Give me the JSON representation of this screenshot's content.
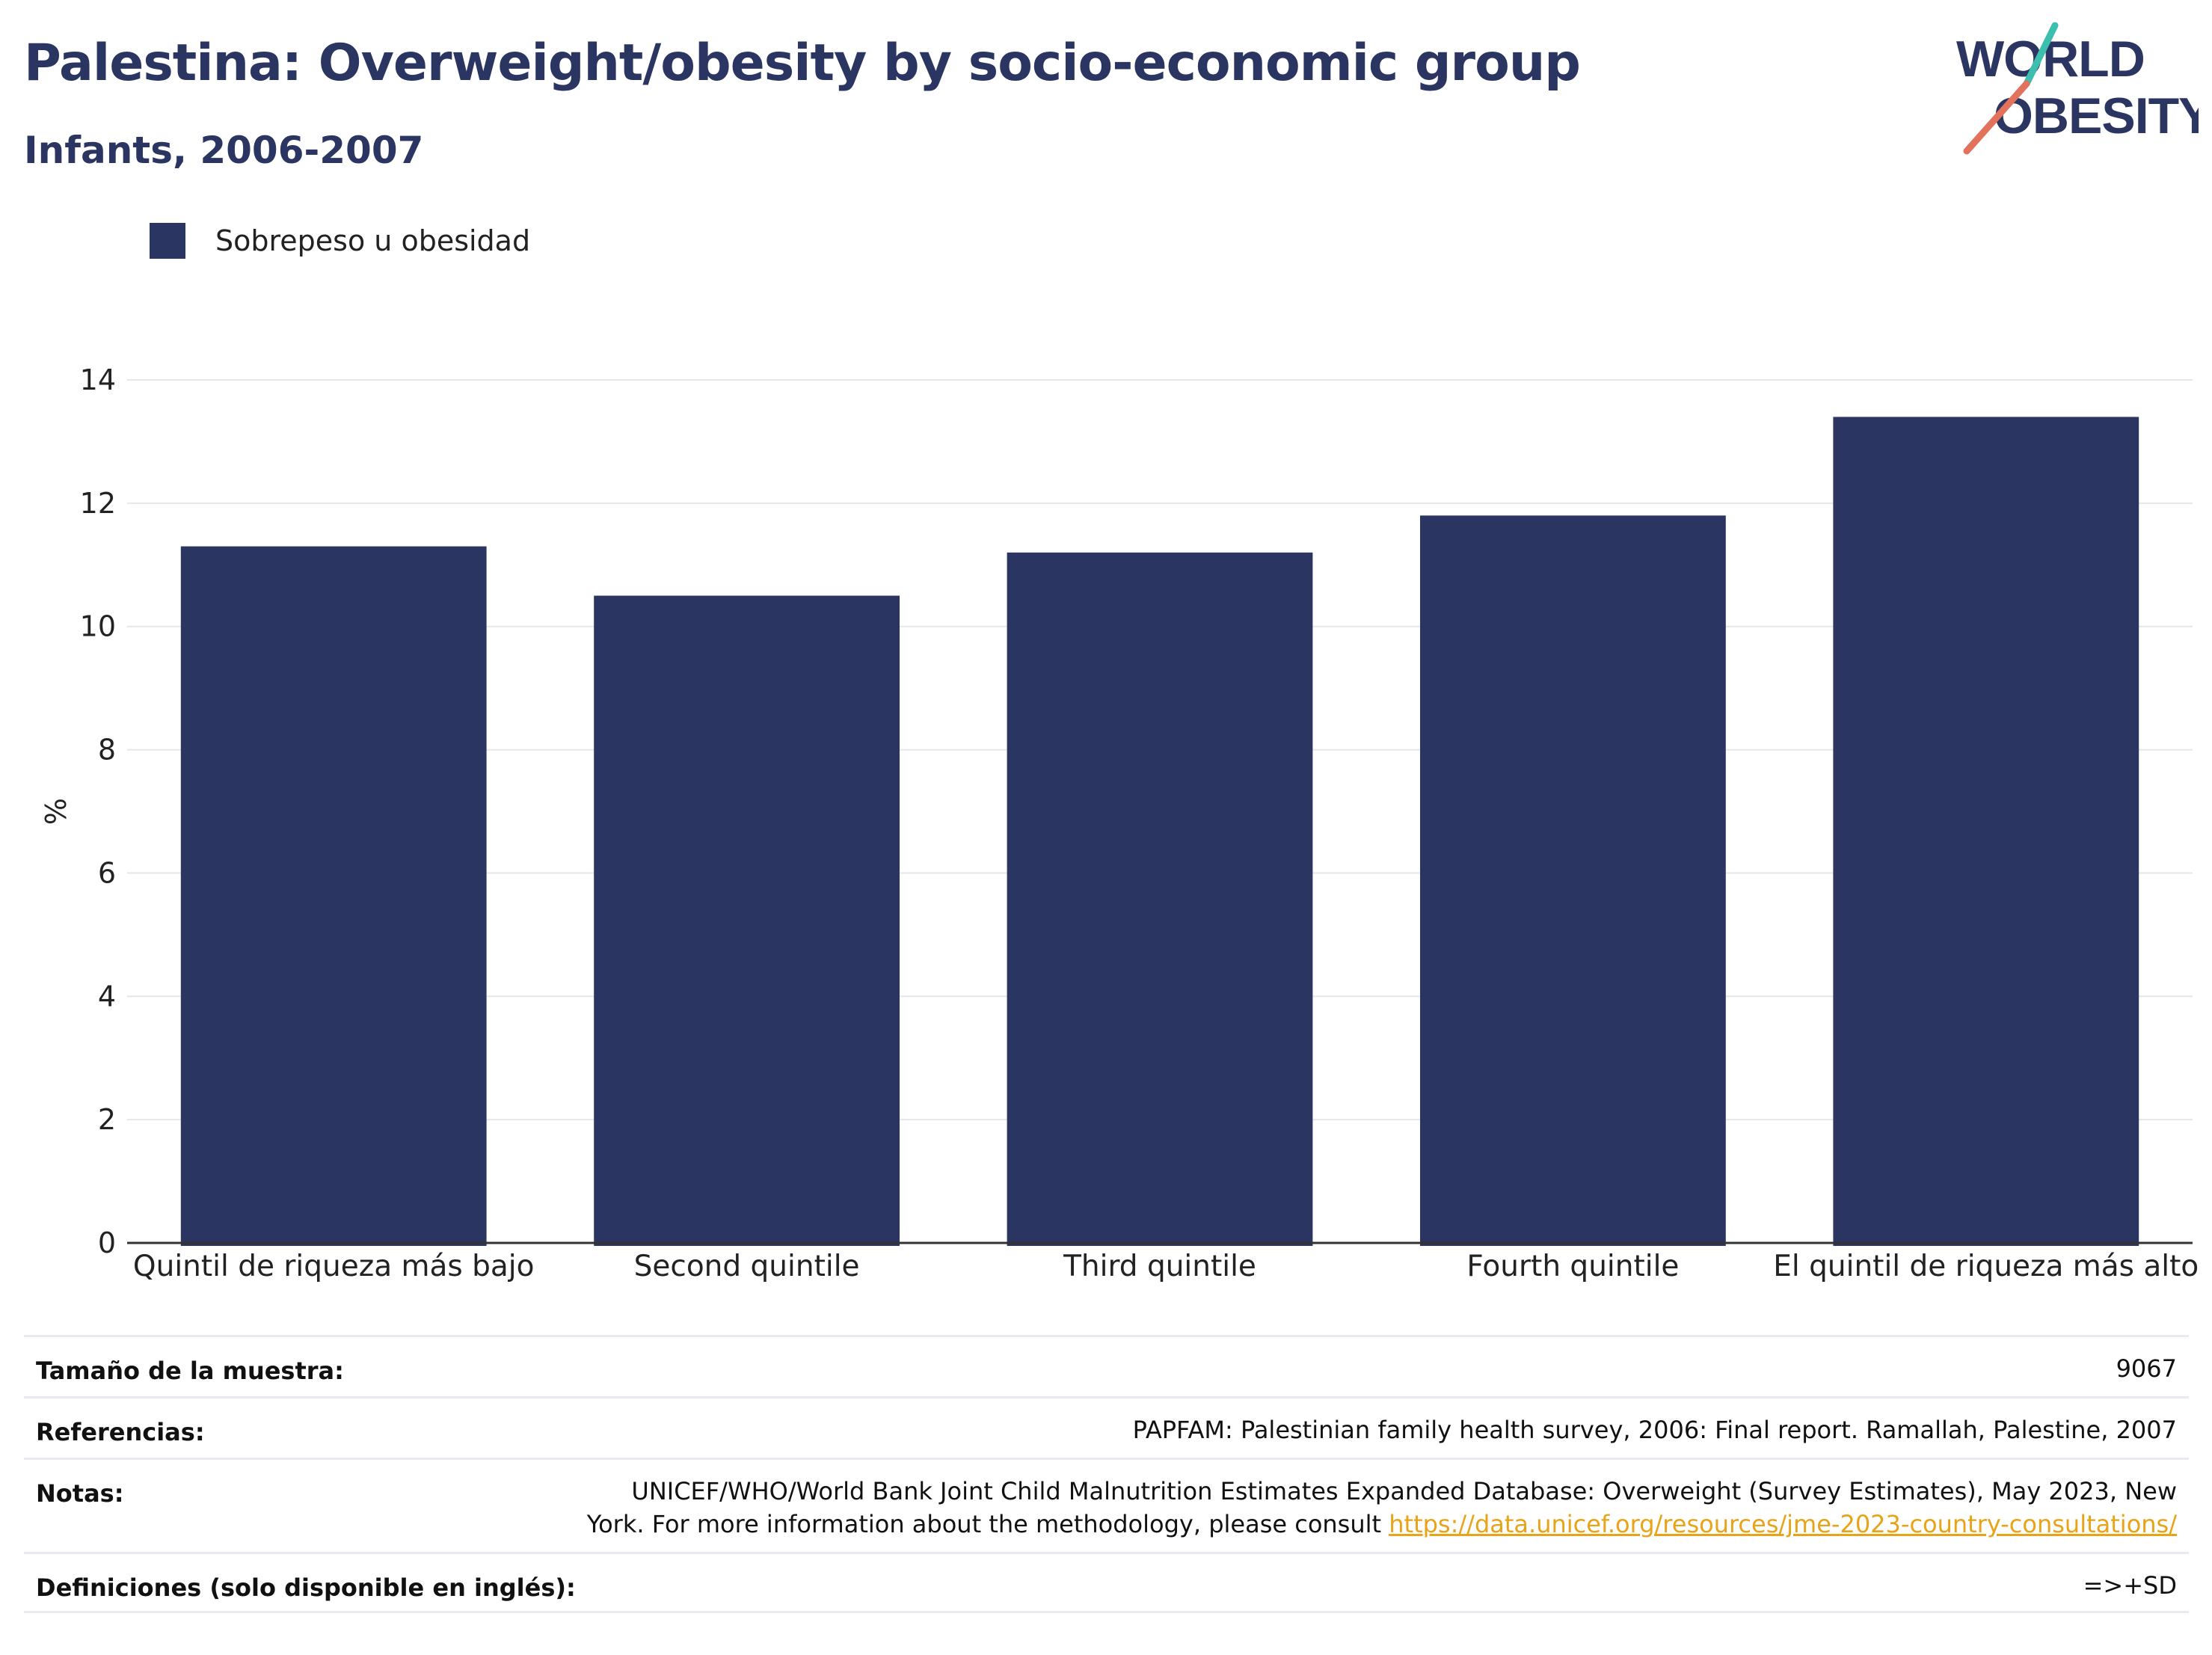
{
  "header": {
    "title": "Palestina: Overweight/obesity by socio-economic group",
    "subtitle": "Infants, 2006-2007"
  },
  "logo": {
    "line1": "WORLD",
    "line2": "OBESITY",
    "accent_teal": "#3cbfae",
    "accent_red": "#e2725b"
  },
  "colors": {
    "bar": "#2b3561",
    "title": "#2b3561",
    "grid": "#e6e6e6",
    "axis": "#333333"
  },
  "chart_data": {
    "type": "bar",
    "ylabel": "%",
    "ylim": [
      0,
      14
    ],
    "yticks": [
      0,
      2,
      4,
      6,
      8,
      10,
      12,
      14
    ],
    "grid": true,
    "legend_position": "top-left",
    "categories": [
      "Quintil de riqueza más bajo",
      "Second quintile",
      "Third quintile",
      "Fourth quintile",
      "El quintil de riqueza más alto"
    ],
    "series": [
      {
        "name": "Sobrepeso u obesidad",
        "values": [
          11.3,
          10.5,
          11.2,
          11.8,
          13.4
        ]
      }
    ]
  },
  "info": {
    "sample_size_label": "Tamaño de la muestra:",
    "sample_size_value": "9067",
    "references_label": "Referencias:",
    "references_value": "PAPFAM: Palestinian family health survey, 2006: Final report. Ramallah, Palestine, 2007",
    "notes_label": "Notas:",
    "notes_line1": "UNICEF/WHO/World Bank Joint Child Malnutrition Estimates Expanded Database: Overweight (Survey Estimates), May 2023, New",
    "notes_line2": "York. For more information about the methodology, please consult",
    "notes_link": "https://data.unicef.org/resources/jme-2023-country-consultations/",
    "definitions_label": "Definiciones (solo disponible en inglés):",
    "definitions_value": "=>+SD"
  }
}
